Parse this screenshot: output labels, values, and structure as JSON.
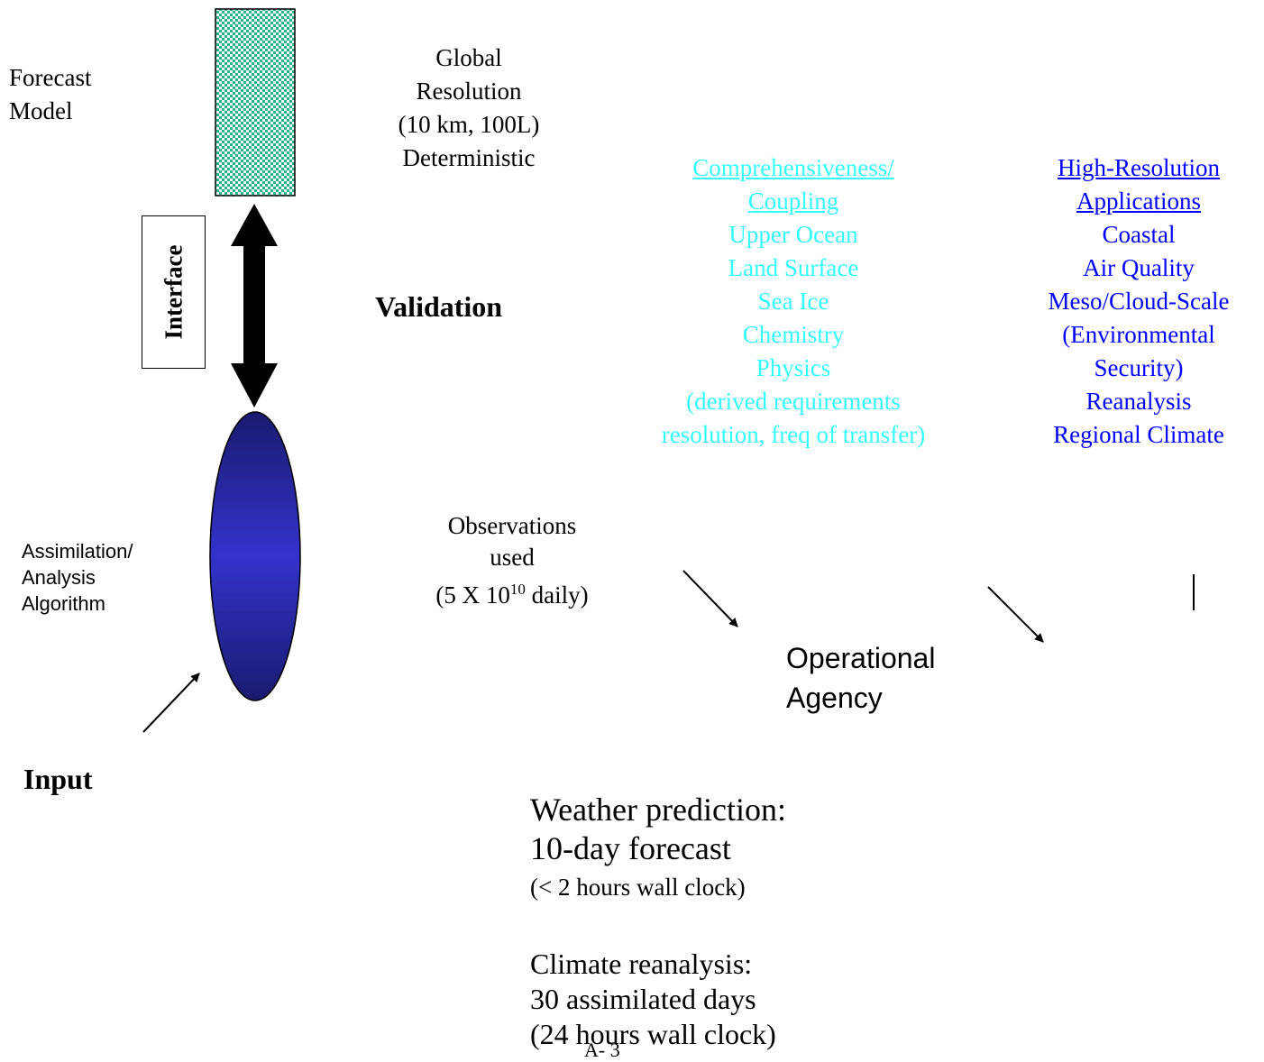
{
  "forecast_model": {
    "lines": [
      "Forecast",
      "Model"
    ]
  },
  "global_block": {
    "lines": [
      "Global",
      "Resolution",
      "(10 km, 100L)",
      "Deterministic"
    ]
  },
  "interface_label": "Interface",
  "validation_label": "Validation",
  "comprehensiveness": {
    "heading_lines": [
      "Comprehensiveness/",
      "Coupling"
    ],
    "items": [
      "Upper Ocean",
      "Land Surface",
      "Sea Ice",
      "Chemistry",
      "Physics",
      "(derived requirements",
      "resolution, freq of transfer)"
    ],
    "color": "#33ffff"
  },
  "high_resolution": {
    "heading_lines": [
      "High-Resolution",
      "Applications"
    ],
    "items": [
      "Coastal",
      "Air Quality",
      "Meso/Cloud-Scale",
      "(Environmental",
      "Security)",
      "Reanalysis",
      "Regional Climate"
    ],
    "color": "#0000ff"
  },
  "observations": {
    "line1": "Observations",
    "line2": "used",
    "line3_pre": "(5 X 10",
    "line3_sup": "10",
    "line3_post": " daily)"
  },
  "assimilation": {
    "lines": [
      "Assimilation/",
      "Analysis",
      "Algorithm"
    ]
  },
  "operational_agency": {
    "lines": [
      "Operational",
      "Agency"
    ]
  },
  "input_label": "Input",
  "weather": {
    "line1": "Weather prediction:",
    "line2": "10-day forecast",
    "line3": "(< 2 hours wall clock)"
  },
  "climate": {
    "line1": "Climate reanalysis:",
    "line2": "30 assimilated days",
    "line3": "(24 hours wall clock)"
  },
  "page_number": "A- 3",
  "colors": {
    "ellipse_edge": "#1a1a70",
    "ellipse_center": "#3333cc",
    "checker_a": "#22b38a",
    "checker_b": "#ffffff"
  }
}
